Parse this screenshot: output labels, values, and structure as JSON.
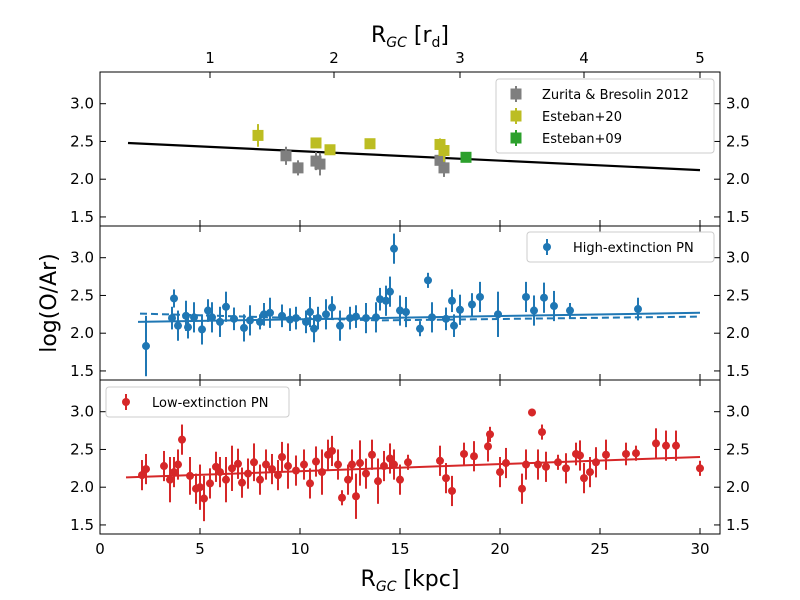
{
  "figure": {
    "bottom_xlabel": "R",
    "bottom_xlabel_sub": "GC",
    "bottom_xlabel_unit": " [kpc]",
    "top_xlabel": "R",
    "top_xlabel_sub": "GC",
    "top_xlabel_unit_pre": " [r",
    "top_xlabel_unit_sub": "d",
    "top_xlabel_unit_post": "]",
    "ylabel": "log(O/Ar)"
  },
  "chart_data": [
    {
      "type": "scatter",
      "panel": "top",
      "xlim": [
        0,
        31
      ],
      "ylim": [
        1.38,
        3.42
      ],
      "yticks": [
        1.5,
        2.0,
        2.5,
        3.0
      ],
      "ytick_labels": [
        "1.5",
        "2.0",
        "2.5",
        "3.0"
      ],
      "xticks": [
        0,
        5,
        10,
        15,
        20,
        25,
        30
      ],
      "xtick_labels": [
        "0",
        "5",
        "10",
        "15",
        "20",
        "25",
        "30"
      ],
      "top_axis": {
        "ticks_kpc": [
          5.5,
          11.7,
          18.0,
          24.2,
          30.0
        ],
        "tick_labels": [
          "1",
          "2",
          "3",
          "4",
          "5"
        ]
      },
      "legend_position": "upper right",
      "series": [
        {
          "name": "Zurita & Bresolin 2012",
          "color": "#7f7f7f",
          "marker": "square",
          "points": [
            [
              9.3,
              2.31,
              0.12
            ],
            [
              9.9,
              2.15,
              0.1
            ],
            [
              10.8,
              2.24,
              0.12
            ],
            [
              11.0,
              2.2,
              0.15
            ],
            [
              17.2,
              2.15,
              0.12
            ],
            [
              17.0,
              2.25,
              0.1
            ]
          ]
        },
        {
          "name": "Esteban+20",
          "color": "#bcbd22",
          "marker": "square",
          "points": [
            [
              7.9,
              2.58,
              0.15
            ],
            [
              10.8,
              2.48,
              0.05
            ],
            [
              11.5,
              2.39,
              0.05
            ],
            [
              13.5,
              2.47,
              0.05
            ],
            [
              17.0,
              2.46,
              0.08
            ],
            [
              17.2,
              2.38,
              0.15
            ]
          ]
        },
        {
          "name": "Esteban+09",
          "color": "#2ca02c",
          "marker": "square",
          "points": [
            [
              18.3,
              2.29,
              0.04
            ]
          ]
        }
      ],
      "fit_lines": [
        {
          "color": "#000000",
          "style": "solid",
          "x": [
            1.4,
            30.0
          ],
          "y": [
            2.48,
            2.12
          ]
        }
      ]
    },
    {
      "type": "scatter",
      "panel": "middle",
      "xlim": [
        0,
        31
      ],
      "ylim": [
        1.38,
        3.42
      ],
      "yticks": [
        1.5,
        2.0,
        2.5,
        3.0
      ],
      "ytick_labels": [
        "1.5",
        "2.0",
        "2.5",
        "3.0"
      ],
      "legend_position": "upper right",
      "series": [
        {
          "name": "High-extinction PN",
          "color": "#1f77b4",
          "marker": "circle",
          "points": [
            [
              2.3,
              1.83,
              0.4
            ],
            [
              3.6,
              2.2,
              0.15
            ],
            [
              3.7,
              2.46,
              0.12
            ],
            [
              3.9,
              2.1,
              0.2
            ],
            [
              4.3,
              2.23,
              0.2
            ],
            [
              4.4,
              2.08,
              0.15
            ],
            [
              4.7,
              2.21,
              0.2
            ],
            [
              5.1,
              2.05,
              0.2
            ],
            [
              5.4,
              2.3,
              0.15
            ],
            [
              5.6,
              2.21,
              0.2
            ],
            [
              6.0,
              2.15,
              0.2
            ],
            [
              6.3,
              2.35,
              0.2
            ],
            [
              6.7,
              2.19,
              0.15
            ],
            [
              7.2,
              2.07,
              0.18
            ],
            [
              7.5,
              2.17,
              0.2
            ],
            [
              8.0,
              2.15,
              0.1
            ],
            [
              8.2,
              2.25,
              0.15
            ],
            [
              8.5,
              2.27,
              0.2
            ],
            [
              9.1,
              2.23,
              0.15
            ],
            [
              9.5,
              2.18,
              0.15
            ],
            [
              9.8,
              2.2,
              0.15
            ],
            [
              10.3,
              2.15,
              0.15
            ],
            [
              10.5,
              2.28,
              0.2
            ],
            [
              10.7,
              2.06,
              0.18
            ],
            [
              10.9,
              2.2,
              0.15
            ],
            [
              11.3,
              2.25,
              0.2
            ],
            [
              11.6,
              2.34,
              0.15
            ],
            [
              12.0,
              2.1,
              0.2
            ],
            [
              12.5,
              2.2,
              0.15
            ],
            [
              12.8,
              2.22,
              0.15
            ],
            [
              13.3,
              2.2,
              0.2
            ],
            [
              13.8,
              2.21,
              0.2
            ],
            [
              14.0,
              2.45,
              0.15
            ],
            [
              14.3,
              2.43,
              0.2
            ],
            [
              14.5,
              2.55,
              0.2
            ],
            [
              14.7,
              3.12,
              0.2
            ],
            [
              15.0,
              2.3,
              0.2
            ],
            [
              15.3,
              2.28,
              0.2
            ],
            [
              16.0,
              2.06,
              0.1
            ],
            [
              16.4,
              2.7,
              0.1
            ],
            [
              16.6,
              2.21,
              0.2
            ],
            [
              17.3,
              2.19,
              0.15
            ],
            [
              17.6,
              2.43,
              0.15
            ],
            [
              17.7,
              2.1,
              0.15
            ],
            [
              18.0,
              2.31,
              0.2
            ],
            [
              18.6,
              2.38,
              0.15
            ],
            [
              19.0,
              2.48,
              0.2
            ],
            [
              19.9,
              2.25,
              0.3
            ],
            [
              21.3,
              2.48,
              0.2
            ],
            [
              21.7,
              2.3,
              0.2
            ],
            [
              22.2,
              2.47,
              0.2
            ],
            [
              22.7,
              2.36,
              0.2
            ],
            [
              23.5,
              2.3,
              0.1
            ],
            [
              26.9,
              2.32,
              0.15
            ]
          ]
        }
      ],
      "fit_lines": [
        {
          "color": "#1f77b4",
          "style": "solid",
          "x": [
            1.9,
            30.0
          ],
          "y": [
            2.15,
            2.27
          ]
        },
        {
          "color": "#1f77b4",
          "style": "dashed",
          "x": [
            2.0,
            14.0,
            30.0
          ],
          "y": [
            2.26,
            2.17,
            2.22
          ]
        }
      ]
    },
    {
      "type": "scatter",
      "panel": "bottom",
      "xlim": [
        0,
        31
      ],
      "ylim": [
        1.38,
        3.42
      ],
      "yticks": [
        1.5,
        2.0,
        2.5,
        3.0
      ],
      "ytick_labels": [
        "1.5",
        "2.0",
        "2.5",
        "3.0"
      ],
      "legend_position": "upper left",
      "series": [
        {
          "name": "Low-extinction PN",
          "color": "#d62728",
          "marker": "circle",
          "points": [
            [
              2.1,
              2.16,
              0.2
            ],
            [
              2.3,
              2.24,
              0.2
            ],
            [
              3.2,
              2.28,
              0.2
            ],
            [
              3.5,
              2.1,
              0.3
            ],
            [
              3.7,
              2.2,
              0.2
            ],
            [
              3.9,
              2.3,
              0.2
            ],
            [
              4.1,
              2.63,
              0.2
            ],
            [
              4.5,
              2.15,
              0.25
            ],
            [
              4.8,
              1.98,
              0.2
            ],
            [
              5.0,
              2.0,
              0.3
            ],
            [
              5.2,
              1.85,
              0.3
            ],
            [
              5.5,
              2.05,
              0.2
            ],
            [
              5.8,
              2.27,
              0.2
            ],
            [
              6.0,
              2.2,
              0.2
            ],
            [
              6.3,
              2.1,
              0.3
            ],
            [
              6.6,
              2.25,
              0.3
            ],
            [
              6.9,
              2.31,
              0.2
            ],
            [
              7.1,
              2.06,
              0.2
            ],
            [
              7.4,
              2.18,
              0.2
            ],
            [
              7.7,
              2.33,
              0.25
            ],
            [
              8.0,
              2.1,
              0.2
            ],
            [
              8.3,
              2.3,
              0.2
            ],
            [
              8.6,
              2.24,
              0.2
            ],
            [
              8.9,
              2.16,
              0.2
            ],
            [
              9.1,
              2.4,
              0.2
            ],
            [
              9.4,
              2.28,
              0.3
            ],
            [
              9.8,
              2.22,
              0.2
            ],
            [
              10.2,
              2.3,
              0.2
            ],
            [
              10.5,
              2.05,
              0.2
            ],
            [
              10.8,
              2.34,
              0.2
            ],
            [
              11.1,
              2.2,
              0.3
            ],
            [
              11.4,
              2.43,
              0.2
            ],
            [
              11.6,
              2.48,
              0.2
            ],
            [
              11.9,
              2.3,
              0.2
            ],
            [
              12.1,
              1.86,
              0.1
            ],
            [
              12.4,
              2.1,
              0.2
            ],
            [
              12.6,
              2.3,
              0.2
            ],
            [
              12.8,
              1.88,
              0.3
            ],
            [
              13.0,
              2.32,
              0.3
            ],
            [
              13.3,
              2.18,
              0.2
            ],
            [
              13.6,
              2.43,
              0.2
            ],
            [
              13.9,
              2.08,
              0.3
            ],
            [
              14.2,
              2.28,
              0.2
            ],
            [
              14.5,
              2.38,
              0.2
            ],
            [
              14.7,
              2.3,
              0.2
            ],
            [
              15.0,
              2.1,
              0.2
            ],
            [
              15.4,
              2.33,
              0.1
            ],
            [
              17.0,
              2.35,
              0.2
            ],
            [
              17.3,
              2.12,
              0.2
            ],
            [
              17.6,
              1.95,
              0.2
            ],
            [
              18.2,
              2.44,
              0.15
            ],
            [
              18.7,
              2.41,
              0.2
            ],
            [
              19.4,
              2.54,
              0.2
            ],
            [
              19.5,
              2.7,
              0.1
            ],
            [
              20.0,
              2.2,
              0.2
            ],
            [
              20.3,
              2.32,
              0.2
            ],
            [
              21.1,
              1.98,
              0.2
            ],
            [
              21.3,
              2.3,
              0.2
            ],
            [
              21.6,
              2.99,
              0.05
            ],
            [
              21.9,
              2.3,
              0.2
            ],
            [
              22.1,
              2.73,
              0.1
            ],
            [
              22.3,
              2.27,
              0.2
            ],
            [
              22.9,
              2.33,
              0.1
            ],
            [
              23.3,
              2.25,
              0.2
            ],
            [
              23.8,
              2.44,
              0.15
            ],
            [
              24.0,
              2.42,
              0.2
            ],
            [
              24.2,
              2.12,
              0.2
            ],
            [
              24.5,
              2.2,
              0.2
            ],
            [
              24.8,
              2.33,
              0.2
            ],
            [
              25.3,
              2.43,
              0.2
            ],
            [
              26.3,
              2.44,
              0.15
            ],
            [
              26.8,
              2.45,
              0.1
            ],
            [
              27.8,
              2.58,
              0.2
            ],
            [
              28.3,
              2.55,
              0.2
            ],
            [
              28.8,
              2.55,
              0.2
            ],
            [
              30.0,
              2.25,
              0.1
            ]
          ]
        }
      ],
      "fit_lines": [
        {
          "color": "#d62728",
          "style": "solid",
          "x": [
            1.3,
            30.0
          ],
          "y": [
            2.13,
            2.4
          ]
        }
      ]
    }
  ]
}
